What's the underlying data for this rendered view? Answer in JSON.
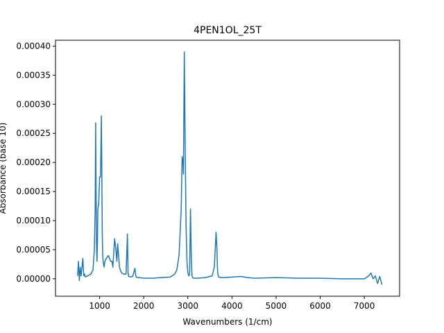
{
  "chart_data": {
    "type": "line",
    "title": "4PEN1OL_25T",
    "xlabel": "Wavenumbers (1/cm)",
    "ylabel": "Absorbance (base 10)",
    "xlim": [
      0,
      7800
    ],
    "ylim": [
      -3e-05,
      0.00041
    ],
    "xticks": [
      1000,
      2000,
      3000,
      4000,
      5000,
      6000,
      7000
    ],
    "xtick_labels": [
      "1000",
      "2000",
      "3000",
      "4000",
      "5000",
      "6000",
      "7000"
    ],
    "yticks": [
      0,
      5e-05,
      0.0001,
      0.00015,
      0.0002,
      0.00025,
      0.0003,
      0.00035,
      0.0004
    ],
    "ytick_labels": [
      "0.00000",
      "0.00005",
      "0.00010",
      "0.00015",
      "0.00020",
      "0.00025",
      "0.00030",
      "0.00035",
      "0.00040"
    ],
    "grid": false,
    "line_color": "#1f77b4",
    "series": [
      {
        "x": [
          500,
          520,
          540,
          560,
          580,
          600,
          620,
          640,
          660,
          680,
          700,
          750,
          800,
          850,
          880,
          900,
          910,
          920,
          930,
          940,
          950,
          960,
          980,
          1000,
          1020,
          1040,
          1050,
          1060,
          1070,
          1080,
          1100,
          1120,
          1150,
          1200,
          1250,
          1280,
          1300,
          1340,
          1370,
          1390,
          1410,
          1430,
          1450,
          1470,
          1500,
          1550,
          1600,
          1630,
          1645,
          1660,
          1700,
          1750,
          1800,
          1820,
          1840,
          1900,
          2000,
          2200,
          2400,
          2600,
          2700,
          2750,
          2800,
          2850,
          2870,
          2890,
          2900,
          2920,
          2940,
          2960,
          2980,
          3000,
          3020,
          3040,
          3060,
          3080,
          3095,
          3110,
          3130,
          3200,
          3400,
          3550,
          3600,
          3640,
          3660,
          3670,
          3680,
          3700,
          3750,
          3800,
          4000,
          4200,
          4350,
          4500,
          5000,
          5500,
          6000,
          6500,
          6800,
          7000,
          7100,
          7150,
          7200,
          7250,
          7300,
          7350,
          7400
        ],
        "y": [
          5e-06,
          3e-05,
          -3e-06,
          2e-05,
          5e-06,
          2e-05,
          3.5e-05,
          5e-06,
          8e-06,
          3e-06,
          4e-06,
          6e-06,
          8e-06,
          1.5e-05,
          5e-05,
          0.00012,
          0.000268,
          0.00015,
          6e-05,
          3e-05,
          6e-05,
          0.00012,
          0.00013,
          0.000175,
          0.000175,
          0.00028,
          0.00018,
          8e-05,
          4e-05,
          3e-05,
          2e-05,
          3e-05,
          3.5e-05,
          4e-05,
          3e-05,
          3e-05,
          2e-05,
          6.9e-05,
          5e-05,
          3e-05,
          6e-05,
          4e-05,
          2e-05,
          1.5e-05,
          1e-05,
          8e-06,
          8e-06,
          7.7e-05,
          1e-05,
          4e-06,
          3e-06,
          4e-06,
          1.8e-05,
          5e-06,
          2e-06,
          2e-06,
          1e-06,
          1e-06,
          2e-06,
          3e-06,
          8e-06,
          1.5e-05,
          4e-05,
          0.00012,
          0.00021,
          0.0002,
          0.00018,
          0.00039,
          0.00022,
          9e-05,
          3e-05,
          1e-05,
          5e-06,
          7e-06,
          0.00012,
          3e-05,
          5e-06,
          2e-06,
          1e-06,
          1e-06,
          2e-06,
          5e-06,
          2e-05,
          8e-05,
          5e-05,
          2e-05,
          8e-06,
          3e-06,
          2e-06,
          2e-06,
          3e-06,
          4e-06,
          2e-06,
          1e-06,
          2e-06,
          1e-06,
          1e-06,
          0.0,
          0.0,
          0.0,
          5e-06,
          1e-05,
          0.0,
          5e-06,
          -8e-06,
          4e-06,
          -1e-05
        ]
      }
    ]
  }
}
